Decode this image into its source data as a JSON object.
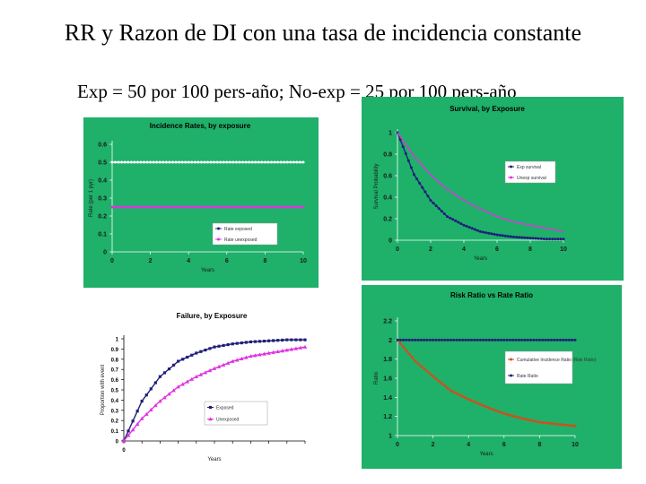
{
  "slide": {
    "title": "RR y Razon de DI con una tasa de incidencia constante",
    "subtitle": "Exp = 50 por 100 pers-año;  No-exp = 25 por 100 pers-año"
  },
  "colors": {
    "green_bg": "#1fb06a",
    "exposed": "#1f1f78",
    "unexposed": "#e033e0",
    "cir": "#d94a1a"
  },
  "chart_data": [
    {
      "id": "rates",
      "type": "line",
      "title": "Incidence Rates, by exposure",
      "xlabel": "Years",
      "ylabel": "Rate (per 1 pyr)",
      "xlim": [
        0,
        10
      ],
      "ylim": [
        0,
        0.6
      ],
      "xticks": [
        "0",
        "2",
        "4",
        "6",
        "8",
        "10"
      ],
      "yticks": [
        "0",
        "0.1",
        "0.2",
        "0.3",
        "0.4",
        "0.5",
        "0.6"
      ],
      "grid": false,
      "legend": "bottom-right",
      "x": [
        0,
        10
      ],
      "series": [
        {
          "name": "Rate exposed",
          "values": [
            0.5,
            0.5
          ]
        },
        {
          "name": "Rate unexposed",
          "values": [
            0.25,
            0.25
          ]
        }
      ]
    },
    {
      "id": "survival",
      "type": "line",
      "title": "Survival, by Exposure",
      "xlabel": "Years",
      "ylabel": "Survival Probability",
      "xlim": [
        0,
        10
      ],
      "ylim": [
        0,
        1
      ],
      "xticks": [
        "0",
        "2",
        "4",
        "6",
        "8",
        "10"
      ],
      "yticks": [
        "0",
        "0.2",
        "0.4",
        "0.6",
        "0.8",
        "1"
      ],
      "grid": false,
      "legend": "right",
      "x": [
        0,
        1,
        2,
        3,
        4,
        5,
        6,
        7,
        8,
        9,
        10
      ],
      "series": [
        {
          "name": "Exp survival",
          "values": [
            1,
            0.61,
            0.37,
            0.22,
            0.14,
            0.08,
            0.05,
            0.03,
            0.02,
            0.01,
            0.01
          ]
        },
        {
          "name": "Unexp survival",
          "values": [
            1,
            0.78,
            0.61,
            0.47,
            0.37,
            0.29,
            0.22,
            0.17,
            0.14,
            0.11,
            0.08
          ]
        }
      ]
    },
    {
      "id": "failure",
      "type": "line",
      "title": "Failure, by Exposure",
      "xlabel": "Years",
      "ylabel": "Proportion with event",
      "xlim": [
        0,
        10
      ],
      "ylim": [
        0,
        1
      ],
      "xticks": [
        "0",
        "",
        "",
        "",
        "",
        "",
        "",
        "",
        "",
        "",
        ""
      ],
      "yticks": [
        "0",
        "0.1",
        "0.2",
        "0.3",
        "0.4",
        "0.5",
        "0.6",
        "0.7",
        "0.8",
        "0.9",
        "1"
      ],
      "grid": false,
      "legend": "bottom-right",
      "x": [
        0,
        1,
        2,
        3,
        4,
        5,
        6,
        7,
        8,
        9,
        10
      ],
      "series": [
        {
          "name": "Exposed",
          "values": [
            0,
            0.39,
            0.63,
            0.78,
            0.86,
            0.92,
            0.95,
            0.97,
            0.98,
            0.99,
            0.99
          ]
        },
        {
          "name": "Unexposed",
          "values": [
            0,
            0.22,
            0.39,
            0.53,
            0.63,
            0.71,
            0.78,
            0.83,
            0.86,
            0.89,
            0.92
          ]
        }
      ]
    },
    {
      "id": "ratio",
      "type": "line",
      "title": "Risk Ratio vs Rate Ratio",
      "xlabel": "Years",
      "ylabel": "Ratio",
      "xlim": [
        0,
        10
      ],
      "ylim": [
        1,
        2.2
      ],
      "xticks": [
        "0",
        "2",
        "4",
        "6",
        "8",
        "10"
      ],
      "yticks": [
        "1",
        "1.2",
        "1.4",
        "1.6",
        "1.8",
        "2",
        "2.2"
      ],
      "grid": false,
      "legend": "right",
      "x": [
        0,
        1,
        2,
        3,
        4,
        5,
        6,
        7,
        8,
        9,
        10
      ],
      "series": [
        {
          "name": "Cumulative Incidence Ratio (Risk Ratio)",
          "values": [
            2,
            1.78,
            1.62,
            1.47,
            1.38,
            1.3,
            1.23,
            1.18,
            1.14,
            1.12,
            1.1
          ]
        },
        {
          "name": "Rate Ratio",
          "values": [
            2,
            2,
            2,
            2,
            2,
            2,
            2,
            2,
            2,
            2,
            2
          ]
        }
      ]
    }
  ]
}
